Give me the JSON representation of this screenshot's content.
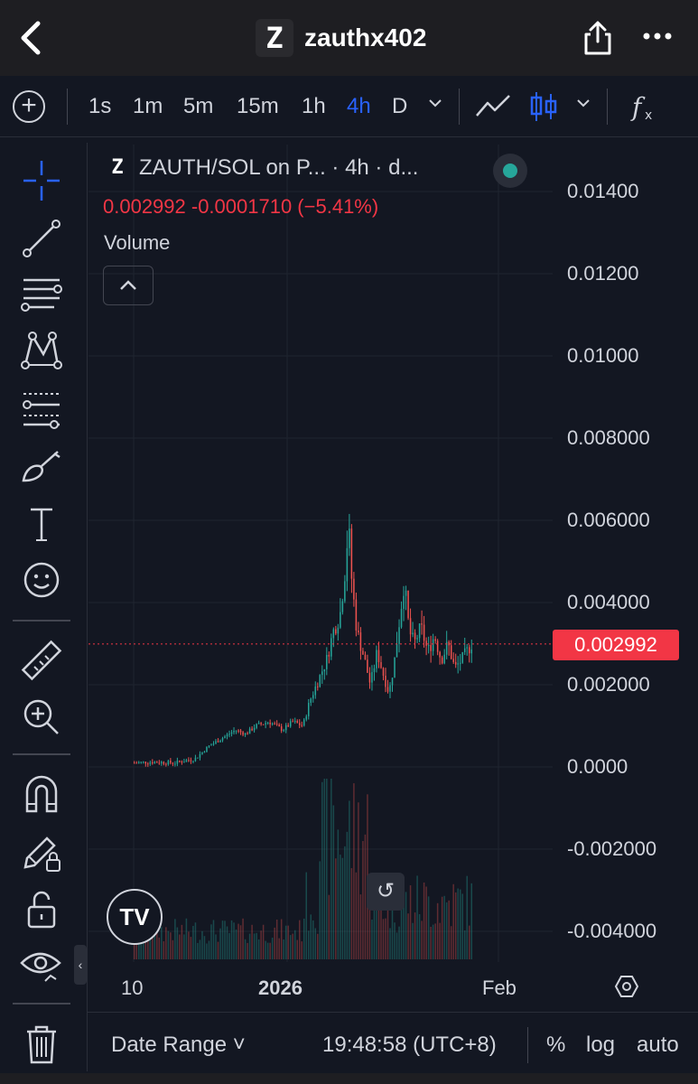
{
  "header": {
    "back_icon": "chevron-left-icon",
    "logo_glyph": "Z",
    "title": "zauthx402",
    "share_icon": "share-icon",
    "more_icon": "more-dots-icon"
  },
  "toolbar": {
    "timeframes": [
      "1s",
      "1m",
      "5m",
      "15m",
      "1h",
      "4h",
      "D"
    ],
    "active_timeframe": "4h"
  },
  "legend": {
    "logo_glyph": "Z",
    "title": "ZAUTH/SOL on P... · 4h · d...",
    "ohlc": "0.002992  -0.0001710 (−5.41%)",
    "volume_label": "Volume",
    "collapse_glyph": "˄"
  },
  "chart_data": {
    "type": "candlestick",
    "title": "ZAUTH/SOL on P... · 4h · d...",
    "last_price": 0.002992,
    "change": -0.000171,
    "change_pct": -5.41,
    "y_ticks": [
      "0.01400",
      "0.01200",
      "0.01000",
      "0.008000",
      "0.006000",
      "0.004000",
      "0.002000",
      "0.0000",
      "-0.002000",
      "-0.004000"
    ],
    "ylim": [
      -0.0047,
      0.0153
    ],
    "x_ticks": [
      "10",
      "2026",
      "Feb"
    ],
    "price_tag": "0.002992",
    "price_path": [
      [
        0.0,
        0.0001
      ],
      [
        0.05,
        0.00012
      ],
      [
        0.12,
        0.0001
      ],
      [
        0.18,
        0.0002
      ],
      [
        0.22,
        0.0005
      ],
      [
        0.26,
        0.0007
      ],
      [
        0.3,
        0.0009
      ],
      [
        0.33,
        0.0008
      ],
      [
        0.36,
        0.001
      ],
      [
        0.4,
        0.0011
      ],
      [
        0.44,
        0.0009
      ],
      [
        0.47,
        0.0011
      ],
      [
        0.5,
        0.001
      ],
      [
        0.52,
        0.0016
      ],
      [
        0.55,
        0.0022
      ],
      [
        0.57,
        0.0026
      ],
      [
        0.59,
        0.0033
      ],
      [
        0.61,
        0.0037
      ],
      [
        0.625,
        0.0048
      ],
      [
        0.635,
        0.0059
      ],
      [
        0.645,
        0.0045
      ],
      [
        0.66,
        0.0033
      ],
      [
        0.68,
        0.0027
      ],
      [
        0.7,
        0.002
      ],
      [
        0.72,
        0.0028
      ],
      [
        0.74,
        0.0022
      ],
      [
        0.755,
        0.0018
      ],
      [
        0.77,
        0.0025
      ],
      [
        0.785,
        0.0035
      ],
      [
        0.8,
        0.0045
      ],
      [
        0.815,
        0.0033
      ],
      [
        0.83,
        0.003
      ],
      [
        0.85,
        0.0034
      ],
      [
        0.87,
        0.0028
      ],
      [
        0.89,
        0.0032
      ],
      [
        0.91,
        0.0026
      ],
      [
        0.93,
        0.003
      ],
      [
        0.95,
        0.0024
      ],
      [
        0.97,
        0.0026
      ],
      [
        1.0,
        0.002992
      ]
    ]
  },
  "controls": {
    "reset_glyph": "↺",
    "tv_logo": "TV"
  },
  "bottom": {
    "date_range": "Date Range ˅",
    "time": "19:48:58 (UTC+8)",
    "percent": "%",
    "log": "log",
    "auto": "auto"
  }
}
